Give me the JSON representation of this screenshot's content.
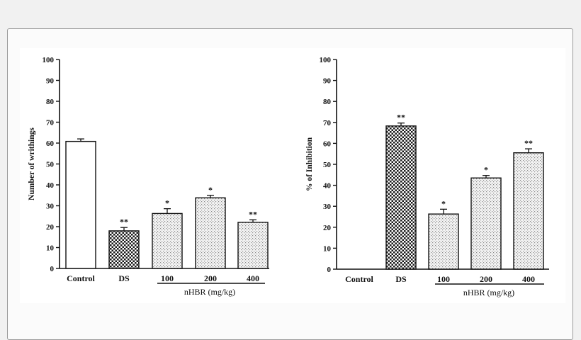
{
  "chart_data": [
    {
      "type": "bar",
      "categories": [
        "Control",
        "DS",
        "100",
        "200",
        "400"
      ],
      "values": [
        60.8,
        18,
        26.3,
        33.8,
        22.1
      ],
      "errors": [
        1.2,
        1.6,
        2.3,
        1.2,
        1.2
      ],
      "significance": [
        "",
        "**",
        "*",
        "*",
        "**"
      ],
      "patterns": [
        "white",
        "checker",
        "dots",
        "dots",
        "dots"
      ],
      "ylabel": "Number of writhings",
      "xlabel": "",
      "group_label": "nHBR (mg/kg)",
      "ylim": [
        0,
        100
      ],
      "yticks": [
        0,
        10,
        20,
        30,
        40,
        50,
        60,
        70,
        80,
        90,
        100
      ]
    },
    {
      "type": "bar",
      "categories": [
        "Control",
        "DS",
        "100",
        "200",
        "400"
      ],
      "values": [
        0,
        68.3,
        26.3,
        43.5,
        55.5
      ],
      "errors": [
        0,
        1.4,
        2.3,
        1.2,
        1.9
      ],
      "significance": [
        "",
        "**",
        "*",
        "*",
        "**"
      ],
      "patterns": [
        "none",
        "checker",
        "dots",
        "dots",
        "dots"
      ],
      "ylabel": "% of Inhibition",
      "xlabel": "",
      "group_label": "nHBR (mg/kg)",
      "ylim": [
        0,
        100
      ],
      "yticks": [
        0,
        10,
        20,
        30,
        40,
        50,
        60,
        70,
        80,
        90,
        100
      ]
    }
  ],
  "colors": {
    "background": "#f1f1f1",
    "panel": "#ffffff",
    "ink": "#111111",
    "frame": "#9a9a9a"
  }
}
